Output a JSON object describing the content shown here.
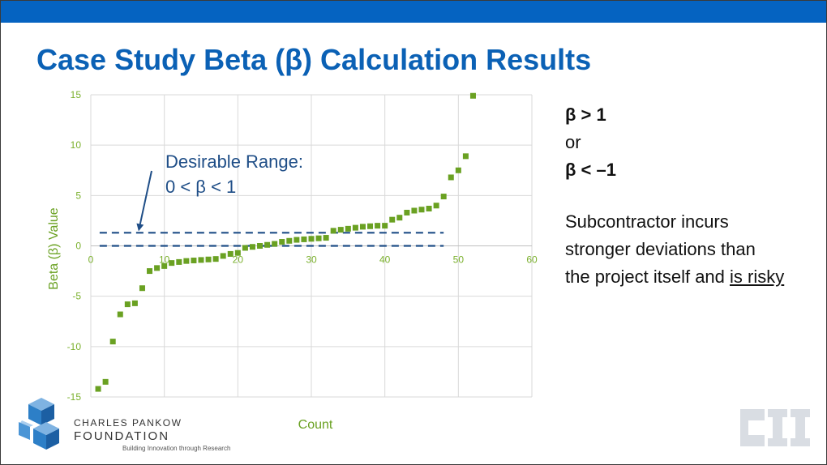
{
  "title": "Case Study Beta (β) Calculation Results",
  "colors": {
    "topbar": "#0563c1",
    "title": "#0b61b5",
    "series": "#6aa122",
    "threshold": "#1f4e87"
  },
  "chart_data": {
    "type": "scatter",
    "xlabel": "Count",
    "ylabel": "Beta (β) Value",
    "xlim": [
      0,
      60
    ],
    "ylim": [
      -15,
      15
    ],
    "x_ticks": [
      "0",
      "10",
      "20",
      "30",
      "40",
      "50",
      "60"
    ],
    "y_ticks": [
      "15",
      "10",
      "5",
      "0",
      "-5",
      "-10",
      "-15"
    ],
    "grid": true,
    "legend": "none",
    "series": [
      {
        "x": [
          1,
          2,
          3,
          4,
          5,
          6,
          7,
          8,
          9,
          10,
          11,
          12,
          13,
          14,
          15,
          16,
          17,
          18,
          19,
          20,
          21,
          22,
          23,
          24,
          25,
          26,
          27,
          28,
          29,
          30,
          31,
          32,
          33,
          34,
          35,
          36,
          37,
          38,
          39,
          40,
          41,
          42,
          43,
          44,
          45,
          46,
          47,
          48,
          49,
          50,
          51,
          52
        ],
        "y": [
          -14.2,
          -13.5,
          -9.5,
          -6.8,
          -5.8,
          -5.7,
          -4.2,
          -2.5,
          -2.2,
          -2.0,
          -1.7,
          -1.6,
          -1.5,
          -1.45,
          -1.4,
          -1.35,
          -1.3,
          -1.0,
          -0.8,
          -0.7,
          -0.2,
          -0.1,
          0.0,
          0.1,
          0.2,
          0.4,
          0.5,
          0.6,
          0.65,
          0.7,
          0.75,
          0.8,
          1.5,
          1.6,
          1.7,
          1.8,
          1.9,
          1.95,
          2.0,
          2.0,
          2.6,
          2.8,
          3.3,
          3.5,
          3.6,
          3.7,
          4.0,
          4.9,
          6.8,
          7.5,
          8.9,
          14.9
        ]
      }
    ],
    "thresholds": [
      0,
      1.3
    ],
    "annotation": {
      "line1": "Desirable Range:",
      "line2": "0 < β < 1",
      "arrow_to": {
        "x": 6.5,
        "y": 1.3
      }
    }
  },
  "side_text": {
    "line1": "β > 1",
    "line2": "or",
    "line3": "β < –1",
    "line4": "Subcontractor incurs",
    "line5": "stronger deviations than",
    "line6_prefix": "the project itself and ",
    "line6_underlined": "is risky"
  },
  "logo": {
    "name_line1": "CHARLES PANKOW",
    "name_line2": "FOUNDATION",
    "tagline": "Building Innovation through Research"
  }
}
